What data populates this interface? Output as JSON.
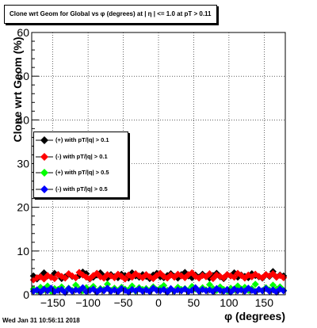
{
  "chart_data": {
    "type": "scatter",
    "title": "Clone wrt Geom for Global vs φ (degrees) at | η | <= 1.0 at pT > 0.11",
    "xlabel": "φ (degrees)",
    "ylabel": "Clone wrt Geom (%)",
    "xlim": [
      -180,
      180
    ],
    "ylim": [
      0,
      60
    ],
    "x_ticks": [
      -150,
      -100,
      -50,
      0,
      50,
      100,
      150
    ],
    "y_ticks": [
      0,
      10,
      20,
      30,
      40,
      50,
      60
    ],
    "grid": true,
    "legend_position": "left-middle",
    "series": [
      {
        "name": "(+) with pT/|q| > 0.1",
        "color": "#000000",
        "values": [
          4.3,
          3.6,
          4.2,
          5.0,
          4.3,
          4.0,
          4.9,
          4.6,
          3.7,
          4.1,
          4.7,
          4.2,
          3.9,
          4.4,
          5.2,
          4.8,
          3.6,
          4.0,
          4.5,
          5.0,
          4.2,
          3.8,
          4.6,
          4.1,
          3.9,
          4.7,
          4.4,
          3.8,
          5.0,
          4.3,
          4.0,
          4.6,
          4.2,
          3.7,
          4.5,
          4.9,
          4.1,
          3.9,
          4.4,
          4.8,
          4.2,
          3.8,
          4.6,
          5.1,
          4.3,
          3.9,
          4.5,
          4.0,
          4.7,
          4.2,
          3.8,
          4.4,
          4.9,
          4.1,
          3.7,
          4.6,
          4.3,
          5.0,
          4.0,
          4.5,
          4.2,
          3.9,
          4.8,
          4.4,
          4.1,
          3.8,
          4.6,
          4.2,
          5.3,
          4.0,
          4.5,
          4.3
        ]
      },
      {
        "name": "(-) with pT/|q| > 0.1",
        "color": "#ff0000",
        "values": [
          3.4,
          3.9,
          4.1,
          3.6,
          4.4,
          4.0,
          3.7,
          4.6,
          4.2,
          3.8,
          4.8,
          4.3,
          3.9,
          5.1,
          4.5,
          4.0,
          3.7,
          4.4,
          4.9,
          4.1,
          3.8,
          4.6,
          4.3,
          3.9,
          4.7,
          4.2,
          3.6,
          4.5,
          4.0,
          4.8,
          4.3,
          3.9,
          4.6,
          4.1,
          3.7,
          4.4,
          4.9,
          4.2,
          3.8,
          4.5,
          4.0,
          4.7,
          4.3,
          3.9,
          4.6,
          5.0,
          4.2,
          3.8,
          4.4,
          4.1,
          4.8,
          3.7,
          4.5,
          4.2,
          3.9,
          4.6,
          4.3,
          4.0,
          4.9,
          4.4,
          3.8,
          4.5,
          4.1,
          4.7,
          4.2,
          3.9,
          4.6,
          4.3,
          4.8,
          4.0,
          4.4,
          3.9
        ]
      },
      {
        "name": "(+) with pT/|q| > 0.5",
        "color": "#00ff00",
        "values": [
          1.3,
          0.9,
          1.7,
          1.1,
          2.0,
          0.8,
          1.4,
          1.2,
          1.8,
          0.7,
          1.5,
          1.0,
          2.2,
          1.3,
          0.9,
          1.6,
          1.1,
          1.9,
          0.8,
          1.4,
          1.2,
          2.4,
          1.0,
          1.5,
          0.9,
          1.7,
          1.3,
          1.1,
          2.0,
          0.8,
          1.6,
          1.2,
          1.4,
          0.9,
          1.8,
          1.1,
          1.5,
          2.1,
          1.0,
          1.3,
          0.8,
          1.7,
          1.2,
          1.4,
          1.0,
          1.9,
          1.3,
          0.9,
          1.6,
          1.1,
          2.3,
          1.4,
          1.0,
          1.8,
          1.2,
          0.9,
          1.5,
          1.1,
          2.0,
          1.3,
          1.7,
          1.0,
          1.4,
          2.4,
          1.2,
          0.9,
          1.6,
          1.1,
          2.2,
          1.3,
          1.8,
          1.0
        ]
      },
      {
        "name": "(-) with pT/|q| > 0.5",
        "color": "#0000ff",
        "values": [
          0.8,
          1.1,
          0.6,
          1.3,
          0.9,
          1.5,
          0.7,
          1.0,
          1.2,
          0.5,
          1.4,
          0.8,
          1.1,
          0.9,
          1.6,
          0.7,
          1.0,
          1.3,
          0.6,
          1.2,
          0.9,
          1.5,
          0.8,
          1.1,
          0.7,
          1.4,
          1.0,
          0.6,
          1.2,
          0.9,
          1.3,
          0.8,
          1.1,
          0.7,
          1.5,
          1.0,
          0.9,
          1.2,
          0.6,
          1.4,
          0.8,
          1.1,
          0.9,
          1.3,
          0.7,
          1.0,
          1.6,
          0.8,
          1.2,
          0.9,
          1.1,
          0.7,
          1.4,
          1.0,
          0.8,
          1.2,
          0.6,
          1.3,
          0.9,
          1.1,
          0.8,
          1.5,
          1.0,
          0.7,
          1.2,
          0.9,
          1.4,
          0.8,
          1.1,
          0.6,
          1.3,
          0.9
        ]
      }
    ]
  },
  "footer": {
    "timestamp": "Wed Jan 31 10:56:11 2018"
  }
}
